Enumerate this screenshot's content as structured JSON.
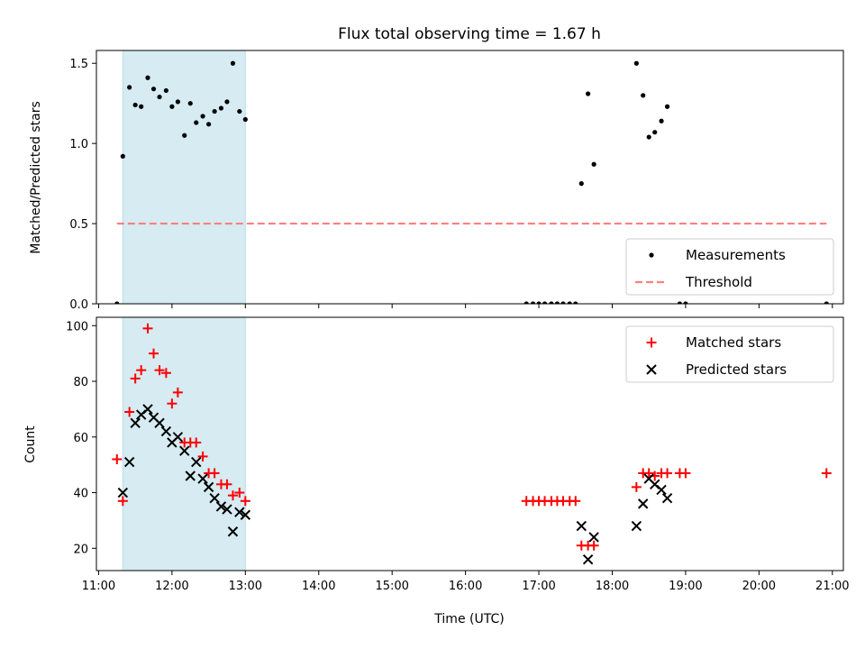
{
  "chart_data": [
    {
      "type": "scatter",
      "title": "Flux total observing time = 1.67 h",
      "xlabel": "",
      "ylabel": "Matched/Predicted stars",
      "xlim": [
        10.97,
        21.15
      ],
      "ylim": [
        0,
        1.58
      ],
      "xticks": [
        "11:00",
        "12:00",
        "13:00",
        "14:00",
        "15:00",
        "16:00",
        "17:00",
        "18:00",
        "19:00",
        "20:00",
        "21:00"
      ],
      "yticks": [
        0.0,
        0.5,
        1.0,
        1.5
      ],
      "ytick_labels": [
        "0.0",
        "0.5",
        "1.0",
        "1.5"
      ],
      "shaded_interval": [
        11.33,
        13.0
      ],
      "shade_color": "#add8e6",
      "legend_position": "lower-right",
      "series": [
        {
          "name": "Measurements",
          "kind": "points",
          "color": "#000000",
          "x": [
            11.25,
            11.33,
            11.42,
            11.5,
            11.58,
            11.67,
            11.75,
            11.83,
            11.92,
            12.0,
            12.08,
            12.17,
            12.25,
            12.33,
            12.42,
            12.5,
            12.58,
            12.67,
            12.75,
            12.83,
            12.92,
            13.0,
            16.83,
            16.92,
            17.0,
            17.08,
            17.17,
            17.25,
            17.33,
            17.42,
            17.5,
            17.58,
            17.67,
            17.75,
            18.33,
            18.42,
            18.5,
            18.58,
            18.67,
            18.75,
            18.92,
            19.0,
            20.92
          ],
          "y": [
            0.0,
            0.92,
            1.35,
            1.24,
            1.23,
            1.41,
            1.34,
            1.29,
            1.33,
            1.23,
            1.26,
            1.05,
            1.25,
            1.13,
            1.17,
            1.12,
            1.2,
            1.22,
            1.26,
            1.5,
            1.2,
            1.15,
            0.0,
            0.0,
            0.0,
            0.0,
            0.0,
            0.0,
            0.0,
            0.0,
            0.0,
            0.75,
            1.31,
            0.87,
            1.5,
            1.3,
            1.04,
            1.07,
            1.14,
            1.23,
            0.0,
            0.0,
            0.0
          ]
        },
        {
          "name": "Threshold",
          "kind": "dashed-line",
          "color": "#ff7f7f",
          "x": [
            11.25,
            20.92
          ],
          "y": [
            0.5,
            0.5
          ]
        }
      ]
    },
    {
      "type": "scatter",
      "title": "",
      "xlabel": "Time (UTC)",
      "ylabel": "Count",
      "xlim": [
        10.97,
        21.15
      ],
      "ylim": [
        12,
        103
      ],
      "xticks": [
        "11:00",
        "12:00",
        "13:00",
        "14:00",
        "15:00",
        "16:00",
        "17:00",
        "18:00",
        "19:00",
        "20:00",
        "21:00"
      ],
      "yticks": [
        20,
        40,
        60,
        80,
        100
      ],
      "ytick_labels": [
        "20",
        "40",
        "60",
        "80",
        "100"
      ],
      "shaded_interval": [
        11.33,
        13.0
      ],
      "shade_color": "#add8e6",
      "legend_position": "upper-right",
      "series": [
        {
          "name": "Matched stars",
          "marker": "plus",
          "color": "#ff0000",
          "x": [
            11.25,
            11.33,
            11.42,
            11.5,
            11.58,
            11.67,
            11.75,
            11.83,
            11.92,
            12.0,
            12.08,
            12.17,
            12.25,
            12.33,
            12.42,
            12.5,
            12.58,
            12.67,
            12.75,
            12.83,
            12.92,
            13.0,
            16.83,
            16.92,
            17.0,
            17.08,
            17.17,
            17.25,
            17.33,
            17.42,
            17.5,
            17.58,
            17.67,
            17.75,
            18.33,
            18.42,
            18.5,
            18.58,
            18.67,
            18.75,
            18.92,
            19.0,
            20.92
          ],
          "y": [
            52,
            37,
            69,
            81,
            84,
            99,
            90,
            84,
            83,
            72,
            76,
            58,
            58,
            58,
            53,
            47,
            47,
            43,
            43,
            39,
            40,
            37,
            37,
            37,
            37,
            37,
            37,
            37,
            37,
            37,
            37,
            21,
            21,
            21,
            42,
            47,
            47,
            46,
            47,
            47,
            47,
            47,
            47
          ]
        },
        {
          "name": "Predicted stars",
          "marker": "x",
          "color": "#000000",
          "x": [
            11.33,
            11.42,
            11.5,
            11.58,
            11.67,
            11.75,
            11.83,
            11.92,
            12.0,
            12.08,
            12.17,
            12.25,
            12.33,
            12.42,
            12.5,
            12.58,
            12.67,
            12.75,
            12.83,
            12.92,
            13.0,
            17.58,
            17.67,
            17.75,
            18.33,
            18.42,
            18.5,
            18.58,
            18.67,
            18.75
          ],
          "y": [
            40,
            51,
            65,
            68,
            70,
            67,
            65,
            62,
            58,
            60,
            55,
            46,
            51,
            45,
            42,
            38,
            35,
            34,
            26,
            33,
            32,
            28,
            16,
            24,
            28,
            36,
            45,
            43,
            41,
            38
          ]
        }
      ]
    }
  ]
}
